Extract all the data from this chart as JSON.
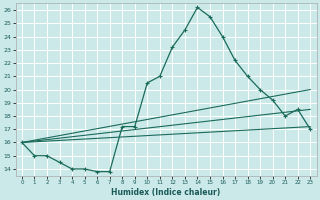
{
  "title": "",
  "xlabel": "Humidex (Indice chaleur)",
  "xlim": [
    -0.5,
    23.5
  ],
  "ylim": [
    13.5,
    26.5
  ],
  "xticks": [
    0,
    1,
    2,
    3,
    4,
    5,
    6,
    7,
    8,
    9,
    10,
    11,
    12,
    13,
    14,
    15,
    16,
    17,
    18,
    19,
    20,
    21,
    22,
    23
  ],
  "yticks": [
    14,
    15,
    16,
    17,
    18,
    19,
    20,
    21,
    22,
    23,
    24,
    25,
    26
  ],
  "background_color": "#cce9e9",
  "grid_color": "#ffffff",
  "line_color": "#1a6b5a",
  "main_series": {
    "x": [
      0,
      1,
      2,
      3,
      4,
      5,
      6,
      7,
      8,
      9,
      10,
      11,
      12,
      13,
      14,
      15,
      16,
      17,
      18,
      19,
      20,
      21,
      22,
      23
    ],
    "y": [
      16.0,
      15.0,
      15.0,
      14.5,
      14.0,
      14.0,
      13.8,
      13.8,
      17.2,
      17.2,
      20.5,
      21.0,
      23.2,
      24.5,
      26.2,
      25.5,
      24.0,
      22.2,
      21.0,
      20.0,
      19.2,
      18.0,
      18.5,
      17.0
    ]
  },
  "straight_lines": [
    {
      "x": [
        0,
        23
      ],
      "y": [
        16.0,
        17.2
      ]
    },
    {
      "x": [
        0,
        23
      ],
      "y": [
        16.0,
        18.5
      ]
    },
    {
      "x": [
        0,
        23
      ],
      "y": [
        16.0,
        20.0
      ]
    }
  ]
}
